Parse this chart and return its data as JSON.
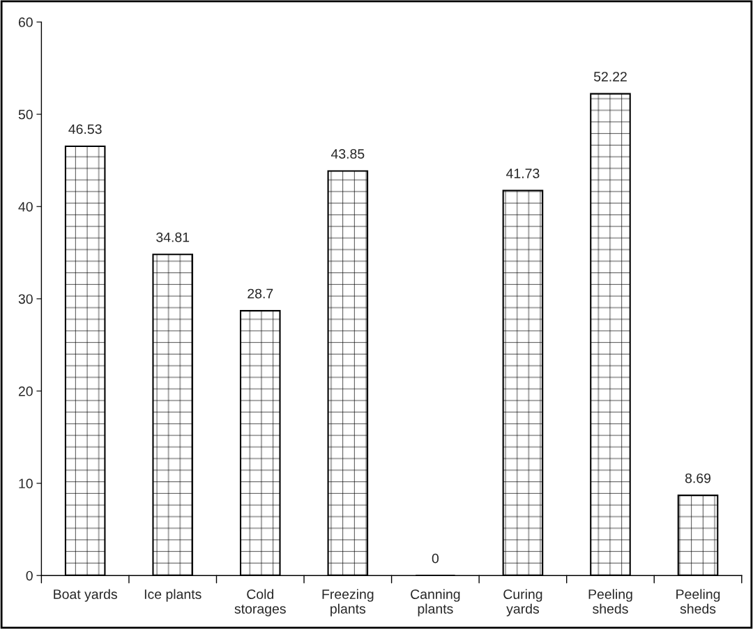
{
  "chart_data": {
    "type": "bar",
    "categories": [
      "Boat yards",
      "Ice plants",
      "Cold storages",
      "Freezing plants",
      "Canning plants",
      "Curing yards",
      "Peeling sheds",
      "Peeling sheds"
    ],
    "values": [
      46.53,
      34.81,
      28.7,
      43.85,
      0,
      41.73,
      52.22,
      8.69
    ],
    "ylim": [
      0,
      60
    ],
    "yticks": [
      0,
      10,
      20,
      30,
      40,
      50,
      60
    ],
    "data_labels": true,
    "grid": false,
    "legend": false
  }
}
